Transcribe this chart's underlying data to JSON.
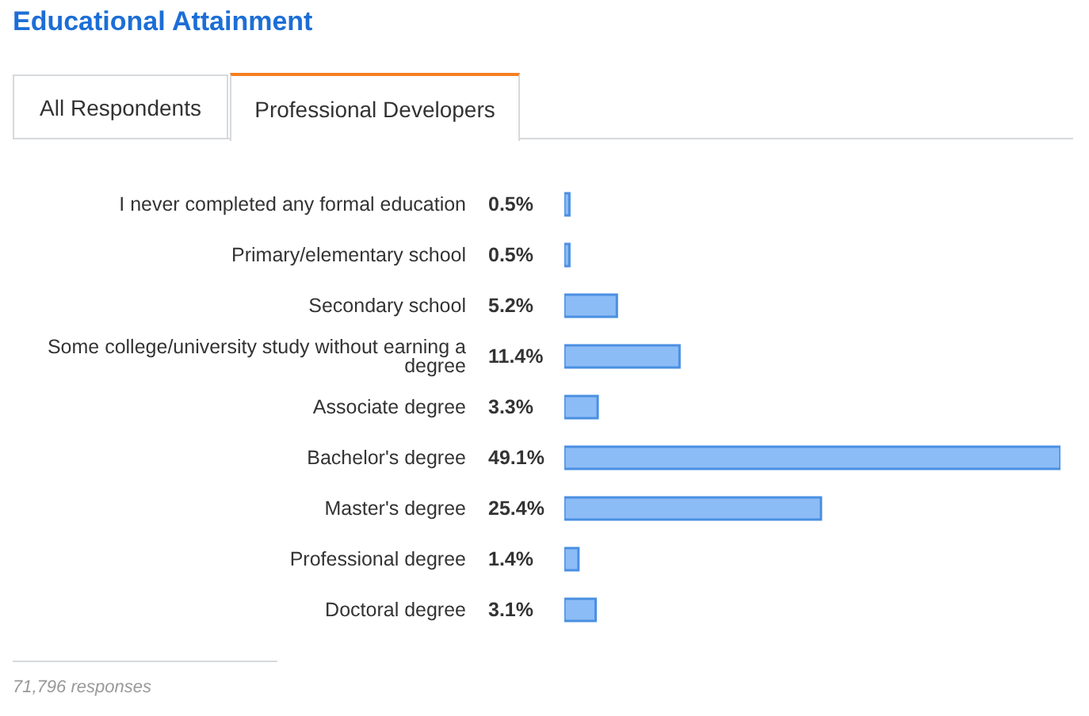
{
  "chart_data": {
    "type": "bar",
    "orientation": "horizontal",
    "title": "Educational Attainment",
    "categories": [
      "I never completed any formal education",
      "Primary/elementary school",
      "Secondary school",
      "Some college/university study without earning a degree",
      "Associate degree",
      "Bachelor's degree",
      "Master's degree",
      "Professional degree",
      "Doctoral degree"
    ],
    "values": [
      0.5,
      0.5,
      5.2,
      11.4,
      3.3,
      49.1,
      25.4,
      1.4,
      3.1
    ],
    "value_labels": [
      "0.5%",
      "0.5%",
      "5.2%",
      "11.4%",
      "3.3%",
      "49.1%",
      "25.4%",
      "1.4%",
      "3.1%"
    ],
    "color": "#8cbcf6",
    "annotations": [
      "All Respondents",
      "Professional Developers",
      "71,796 responses"
    ]
  }
}
